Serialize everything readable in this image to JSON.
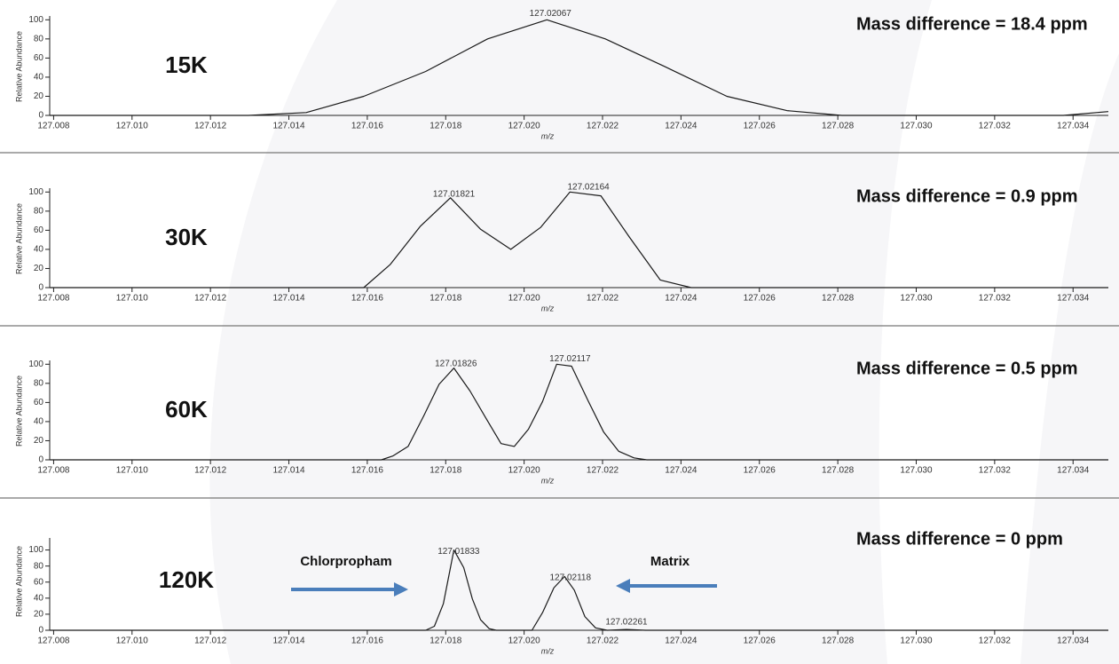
{
  "chart_data": [
    {
      "type": "line",
      "label": "15K",
      "title": "Mass difference = 18.4 ppm",
      "x_label": "m/z",
      "y_label": "Relative Abundance",
      "xlim": [
        127.0079,
        127.0349
      ],
      "ylim": [
        0,
        104
      ],
      "xticks": [
        127.008,
        {
          "value": 127.01,
          "label": "127.010"
        },
        127.012,
        127.014,
        127.016,
        127.018,
        {
          "value": 127.02,
          "label": "127.020"
        },
        127.022,
        127.024,
        127.026,
        127.028,
        {
          "value": 127.03,
          "label": "127.030"
        },
        127.032,
        127.034
      ],
      "yticks": [
        0,
        20,
        40,
        60,
        80,
        100
      ],
      "color": "#1a1a1a",
      "x": [
        127.0079,
        127.01297,
        127.01444,
        127.01591,
        127.01749,
        127.01907,
        127.02058,
        127.02207,
        127.02359,
        127.02517,
        127.0267,
        127.0281,
        127.03375,
        127.0349
      ],
      "values": [
        0,
        0,
        3,
        20,
        46,
        80,
        100,
        80,
        51,
        20,
        5,
        0,
        0,
        4
      ],
      "peak_labels": [
        127.02067
      ]
    },
    {
      "type": "line",
      "label": "30K",
      "title": "Mass difference =  0.9 ppm",
      "x_label": "m/z",
      "y_label": "Relative Abundance",
      "xlim": [
        127.0079,
        127.0349
      ],
      "ylim": [
        0,
        104
      ],
      "xticks": [
        127.008,
        {
          "value": 127.01,
          "label": "127.010"
        },
        127.012,
        127.014,
        127.016,
        127.018,
        {
          "value": 127.02,
          "label": "127.020"
        },
        127.022,
        127.024,
        127.026,
        127.028,
        {
          "value": 127.03,
          "label": "127.030"
        },
        127.032,
        127.034
      ],
      "yticks": [
        0,
        20,
        40,
        60,
        80,
        100
      ],
      "color": "#1a1a1a",
      "x": [
        127.0079,
        127.01591,
        127.01658,
        127.01735,
        127.01812,
        127.01889,
        127.01966,
        127.02042,
        127.02117,
        127.02196,
        127.02268,
        127.02347,
        127.02426,
        127.0349
      ],
      "values": [
        0,
        0,
        24,
        64,
        94,
        61,
        40,
        63,
        100,
        96,
        53,
        8,
        0,
        0
      ],
      "peak_labels": [
        127.01821,
        127.02164
      ]
    },
    {
      "type": "line",
      "label": "60K",
      "title": "Mass difference = 0.5 ppm",
      "x_label": "m/z",
      "y_label": "Relative Abundance",
      "xlim": [
        127.0079,
        127.0349
      ],
      "ylim": [
        0,
        104
      ],
      "xticks": [
        127.008,
        {
          "value": 127.01,
          "label": "127.010"
        },
        127.012,
        127.014,
        127.016,
        127.018,
        {
          "value": 127.02,
          "label": "127.020"
        },
        127.022,
        127.024,
        127.026,
        127.028,
        {
          "value": 127.03,
          "label": "127.030"
        },
        127.032,
        127.034
      ],
      "yticks": [
        0,
        20,
        40,
        60,
        80,
        100
      ],
      "color": "#1a1a1a",
      "x": [
        127.0079,
        127.01636,
        127.01665,
        127.01704,
        127.01744,
        127.01783,
        127.01821,
        127.01862,
        127.01902,
        127.01941,
        127.01975,
        127.02011,
        127.02047,
        127.02083,
        127.02121,
        127.02164,
        127.02203,
        127.02241,
        127.0228,
        127.02313,
        127.0349
      ],
      "values": [
        0,
        0,
        4,
        14,
        46,
        79,
        96,
        72,
        44,
        17,
        14,
        32,
        61,
        100,
        98,
        61,
        29,
        9,
        2,
        0,
        0
      ],
      "peak_labels": [
        127.01826,
        127.02117
      ]
    },
    {
      "type": "line",
      "label": "120K",
      "title": "Mass difference = 0 ppm",
      "x_label": "m/z",
      "y_label": "Relative Abundance",
      "xlim": [
        127.0079,
        127.0349
      ],
      "ylim": [
        0,
        115
      ],
      "xticks": [
        127.008,
        {
          "value": 127.01,
          "label": "127.010"
        },
        127.012,
        127.014,
        127.016,
        127.018,
        {
          "value": 127.02,
          "label": "127.020"
        },
        127.022,
        127.024,
        127.026,
        127.028,
        {
          "value": 127.03,
          "label": "127.030"
        },
        127.032,
        127.034
      ],
      "yticks": [
        0,
        20,
        40,
        60,
        80,
        100
      ],
      "color": "#1a1a1a",
      "x": [
        127.0079,
        127.01749,
        127.01771,
        127.01794,
        127.01821,
        127.01846,
        127.01868,
        127.01889,
        127.01911,
        127.01929,
        127.0202,
        127.02047,
        127.02076,
        127.02103,
        127.02128,
        127.02155,
        127.02182,
        127.02212,
        127.02261,
        127.0231,
        127.0349
      ],
      "values": [
        0,
        0,
        5,
        33,
        100,
        78,
        39,
        13,
        2,
        0,
        0,
        22,
        53,
        67,
        50,
        17,
        3,
        0,
        1,
        0,
        0
      ],
      "peak_labels": [
        127.01833,
        127.02118,
        127.02261
      ],
      "annotations": [
        "Chlorpropham",
        "Matrix"
      ]
    }
  ]
}
